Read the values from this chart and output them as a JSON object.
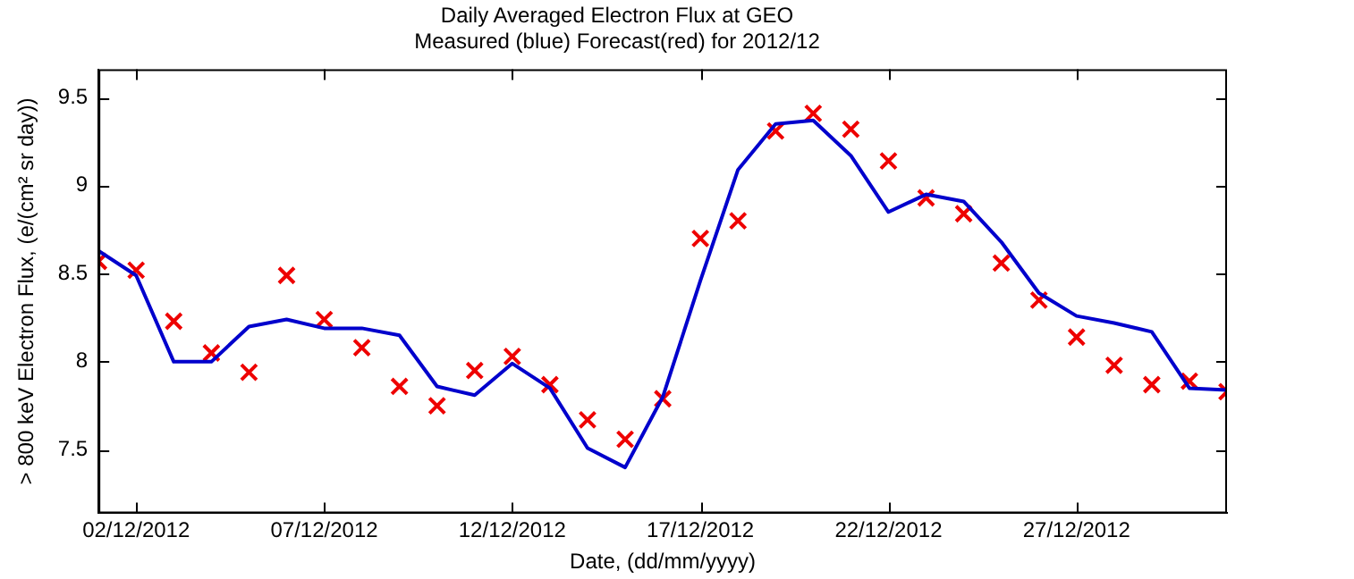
{
  "chart_data": {
    "type": "line",
    "title": "Daily Averaged Electron Flux at GEO",
    "subtitle": "Measured (blue) Forecast(red) for 2012/12",
    "xlabel": "Date, (dd/mm/yyyy)",
    "ylabel": "> 800 keV Electron Flux, (e/(cm² sr day))",
    "x": [
      "2012-12-01",
      "2012-12-02",
      "2012-12-03",
      "2012-12-04",
      "2012-12-05",
      "2012-12-06",
      "2012-12-07",
      "2012-12-08",
      "2012-12-09",
      "2012-12-10",
      "2012-12-11",
      "2012-12-12",
      "2012-12-13",
      "2012-12-14",
      "2012-12-15",
      "2012-12-16",
      "2012-12-17",
      "2012-12-18",
      "2012-12-19",
      "2012-12-20",
      "2012-12-21",
      "2012-12-22",
      "2012-12-23",
      "2012-12-24",
      "2012-12-25",
      "2012-12-26",
      "2012-12-27",
      "2012-12-28",
      "2012-12-29",
      "2012-12-30",
      "2012-12-31"
    ],
    "series": [
      {
        "color": "#0000cc",
        "marker": "none",
        "values": [
          8.63,
          8.49,
          8.0,
          8.0,
          8.2,
          8.24,
          8.19,
          8.19,
          8.15,
          7.86,
          7.81,
          7.99,
          7.85,
          7.51,
          7.4,
          7.8,
          8.46,
          9.09,
          9.35,
          9.37,
          9.17,
          8.85,
          8.95,
          8.91,
          8.68,
          8.39,
          8.26,
          8.22,
          8.17,
          7.85,
          7.84
        ]
      },
      {
        "type": "scatter",
        "color": "#ee0000",
        "marker": "cross",
        "values": [
          8.57,
          8.52,
          8.23,
          8.05,
          7.94,
          8.49,
          8.24,
          8.08,
          7.86,
          7.75,
          7.95,
          8.03,
          7.87,
          7.67,
          7.56,
          7.79,
          8.7,
          8.8,
          9.31,
          9.41,
          9.32,
          9.14,
          8.93,
          8.84,
          8.56,
          8.35,
          8.14,
          7.98,
          7.87,
          7.89,
          7.83
        ]
      }
    ],
    "xlim": [
      "2012-12-01",
      "2012-12-31"
    ],
    "xticks": [
      {
        "value": "2012-12-02",
        "label": "02/12/2012"
      },
      {
        "value": "2012-12-07",
        "label": "07/12/2012"
      },
      {
        "value": "2012-12-12",
        "label": "12/12/2012"
      },
      {
        "value": "2012-12-17",
        "label": "17/12/2012"
      },
      {
        "value": "2012-12-22",
        "label": "22/12/2012"
      },
      {
        "value": "2012-12-27",
        "label": "27/12/2012"
      }
    ],
    "ylim": [
      7.14,
      9.66
    ],
    "yticks": [
      7.5,
      8,
      8.5,
      9,
      9.5
    ],
    "grid": false,
    "legend": false
  }
}
